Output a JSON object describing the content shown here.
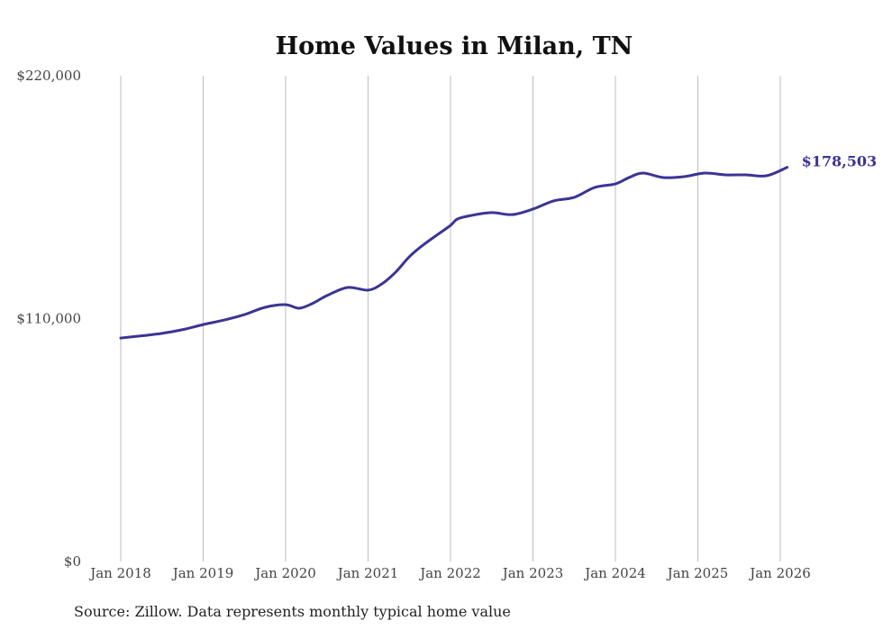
{
  "chart_data": {
    "type": "line",
    "title": "Home Values in Milan, TN",
    "xlabel": "",
    "ylabel": "",
    "ylim": [
      0,
      220000
    ],
    "y_ticks": [
      {
        "value": 0,
        "label": "$0"
      },
      {
        "value": 110000,
        "label": "$110,000"
      },
      {
        "value": 220000,
        "label": "$220,000"
      }
    ],
    "x_ticks": [
      {
        "value": "2018-01",
        "label": "Jan 2018"
      },
      {
        "value": "2019-01",
        "label": "Jan 2019"
      },
      {
        "value": "2020-01",
        "label": "Jan 2020"
      },
      {
        "value": "2021-01",
        "label": "Jan 2021"
      },
      {
        "value": "2022-01",
        "label": "Jan 2022"
      },
      {
        "value": "2023-01",
        "label": "Jan 2023"
      },
      {
        "value": "2024-01",
        "label": "Jan 2024"
      },
      {
        "value": "2025-01",
        "label": "Jan 2025"
      },
      {
        "value": "2026-01",
        "label": "Jan 2026"
      }
    ],
    "grid": "vertical",
    "series": [
      {
        "name": "Typical home value",
        "color": "#3b3495",
        "end_label": "$178,503",
        "points": [
          [
            "2018-01",
            101200
          ],
          [
            "2018-04",
            102200
          ],
          [
            "2018-07",
            103300
          ],
          [
            "2018-10",
            105000
          ],
          [
            "2019-01",
            107300
          ],
          [
            "2019-04",
            109300
          ],
          [
            "2019-07",
            111800
          ],
          [
            "2019-10",
            115100
          ],
          [
            "2020-01",
            116300
          ],
          [
            "2020-03",
            114700
          ],
          [
            "2020-05",
            117000
          ],
          [
            "2020-07",
            120400
          ],
          [
            "2020-10",
            124100
          ],
          [
            "2021-01",
            122900
          ],
          [
            "2021-03",
            125700
          ],
          [
            "2021-05",
            131000
          ],
          [
            "2021-07",
            138000
          ],
          [
            "2021-09",
            143300
          ],
          [
            "2021-11",
            147800
          ],
          [
            "2022-01",
            152200
          ],
          [
            "2022-02",
            155100
          ],
          [
            "2022-04",
            156700
          ],
          [
            "2022-07",
            158000
          ],
          [
            "2022-10",
            157100
          ],
          [
            "2023-01",
            159600
          ],
          [
            "2023-04",
            163300
          ],
          [
            "2023-07",
            164900
          ],
          [
            "2023-10",
            169400
          ],
          [
            "2024-01",
            171000
          ],
          [
            "2024-03",
            173900
          ],
          [
            "2024-05",
            175900
          ],
          [
            "2024-08",
            173900
          ],
          [
            "2024-11",
            174300
          ],
          [
            "2025-02",
            175900
          ],
          [
            "2025-05",
            175100
          ],
          [
            "2025-08",
            175100
          ],
          [
            "2025-11",
            174700
          ],
          [
            "2026-02",
            178503
          ]
        ]
      }
    ],
    "source": "Source: Zillow. Data represents monthly typical home value"
  }
}
